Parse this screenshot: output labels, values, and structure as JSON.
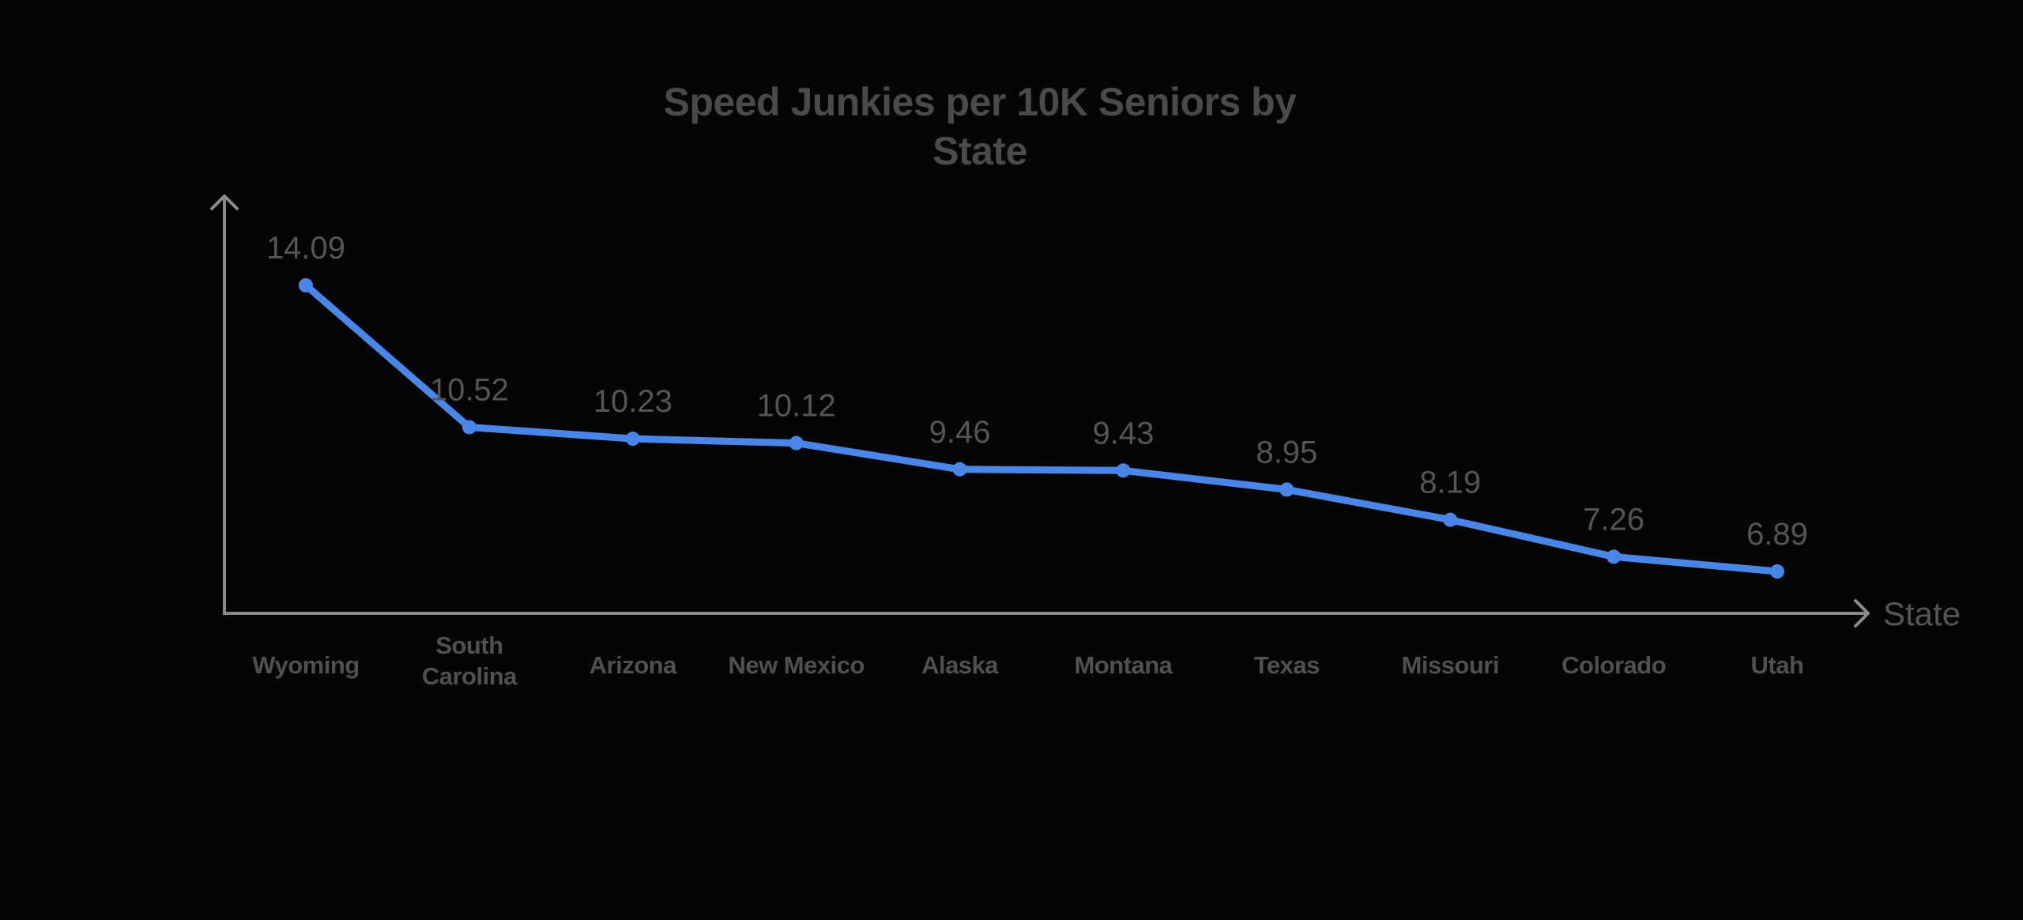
{
  "title": "Speed Junkies per 10K Seniors by State",
  "colors": {
    "background": "#050407",
    "line": "#4a86e8",
    "axis": "#8a8a8a",
    "title": "#4a4a4a",
    "labels": "#555555"
  },
  "chart_data": {
    "type": "line",
    "title": "Speed Junkies per 10K Seniors by State",
    "xlabel": "State",
    "ylabel": "",
    "categories": [
      "Wyoming",
      "South Carolina",
      "Arizona",
      "New Mexico",
      "Alaska",
      "Montana",
      "Texas",
      "Missouri",
      "Colorado",
      "Utah"
    ],
    "series": [
      {
        "name": "Speed Junkies per 10K Seniors",
        "values": [
          14.09,
          10.52,
          10.23,
          10.12,
          9.46,
          9.43,
          8.95,
          8.19,
          7.26,
          6.89
        ],
        "labels": [
          "14.09",
          "10.52",
          "10.23",
          "10.12",
          "9.46",
          "9.43",
          "8.95",
          "8.19",
          "7.26",
          "6.89"
        ]
      }
    ],
    "grid": false,
    "legend": "none",
    "data_labels": true,
    "y_axis_ticks": false
  }
}
